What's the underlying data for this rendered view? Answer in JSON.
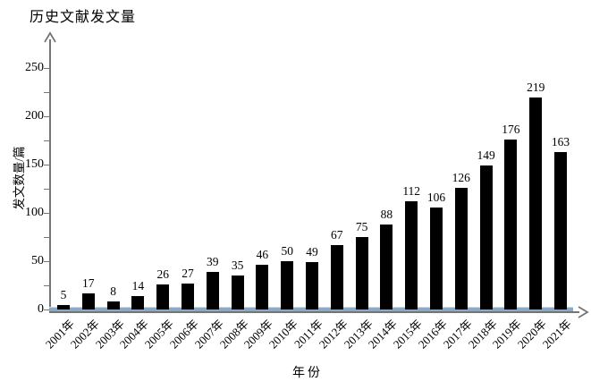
{
  "chart_title": "历史文献发文量",
  "colors": {
    "bar": "#000000",
    "axis_gray": "#757575",
    "baseline_blue": "#8aa9c6",
    "baseline_blue_highlight": "#c9d9e8",
    "text": "#000000",
    "background": "#ffffff"
  },
  "chart_data": {
    "type": "bar",
    "title": "历史文献发文量",
    "xlabel": "年份",
    "ylabel": "发文数量/篇",
    "categories": [
      "2001年",
      "2002年",
      "2003年",
      "2004年",
      "2005年",
      "2006年",
      "2007年",
      "2008年",
      "2009年",
      "2010年",
      "2011年",
      "2012年",
      "2013年",
      "2014年",
      "2015年",
      "2016年",
      "2017年",
      "2018年",
      "2019年",
      "2020年",
      "2021年"
    ],
    "values": [
      5,
      17,
      8,
      14,
      26,
      27,
      39,
      35,
      46,
      50,
      49,
      67,
      75,
      88,
      112,
      106,
      126,
      149,
      176,
      219,
      163
    ],
    "ylim": [
      0,
      250
    ],
    "ytick_labels": [
      0,
      50,
      100,
      150,
      200,
      250
    ],
    "ytick_label_step": 50,
    "minor_tick_step": 25,
    "grid": false,
    "legend": null,
    "data_labels": true,
    "axis_arrows": true
  }
}
